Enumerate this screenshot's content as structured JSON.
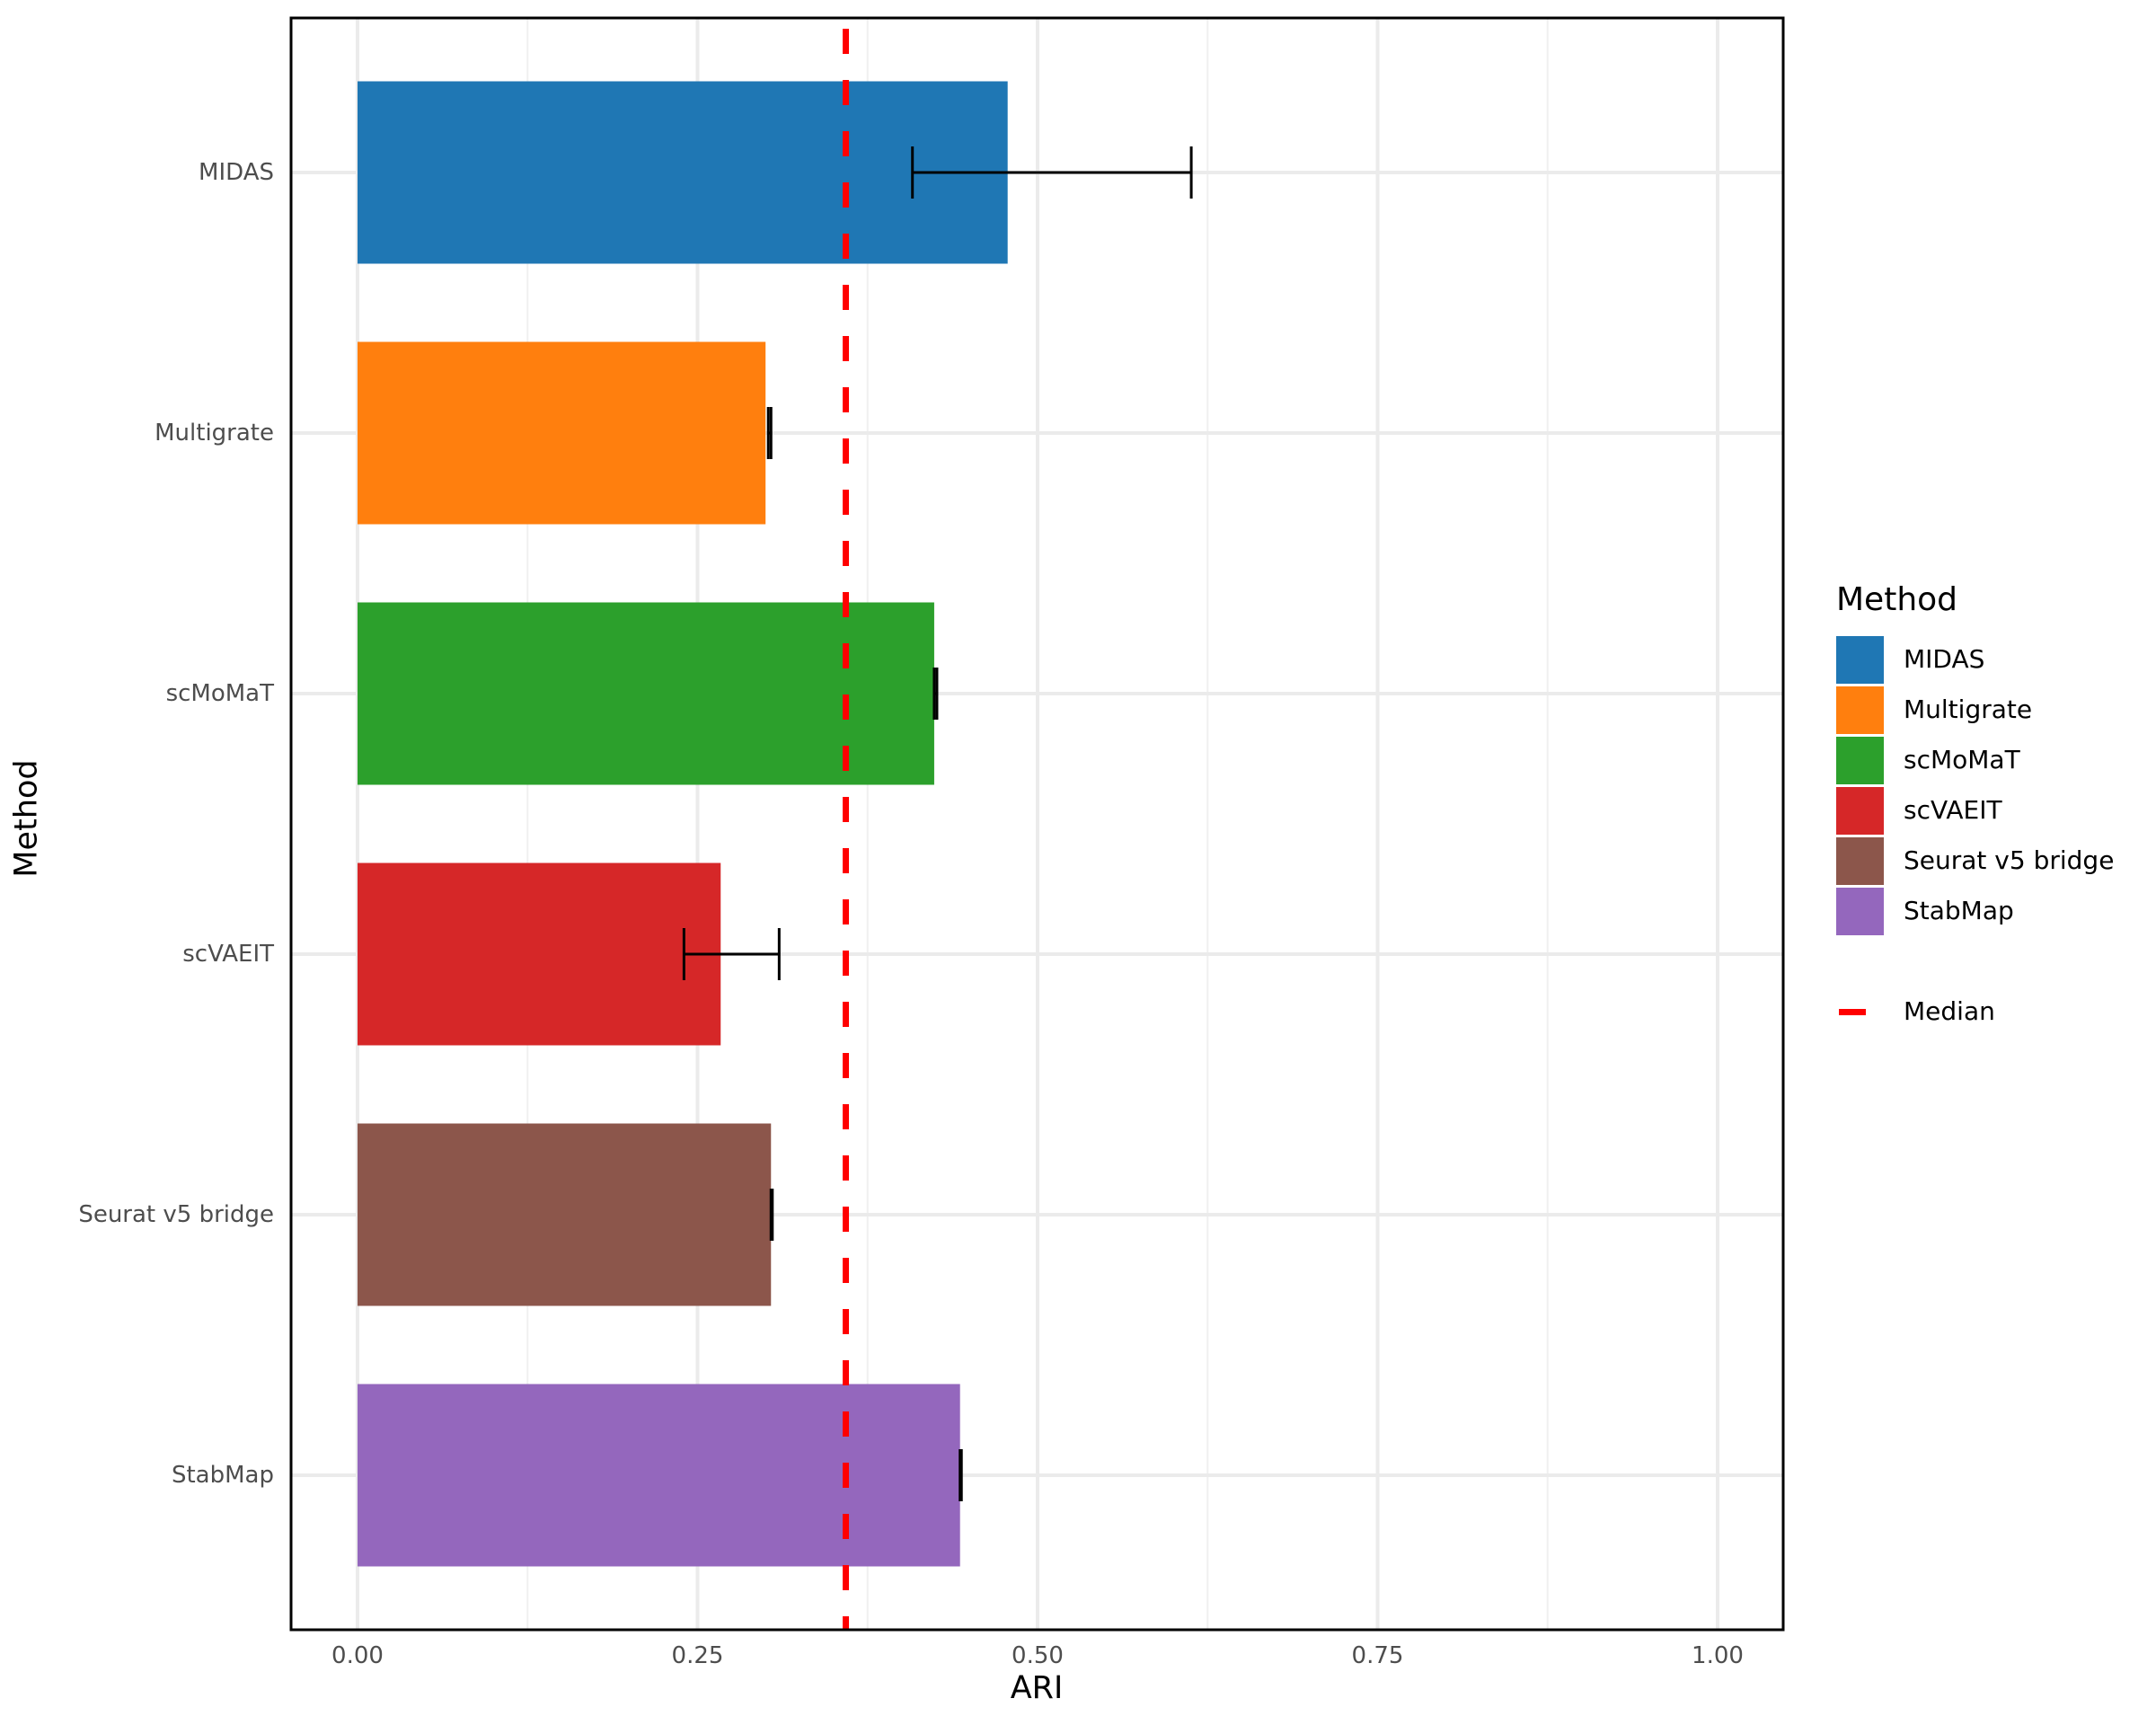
{
  "chart_data": {
    "type": "bar",
    "orientation": "horizontal",
    "title": "",
    "xlabel": "ARI",
    "ylabel": "Method",
    "xlim": [
      0,
      1.0
    ],
    "x_ticks": [
      "0.00",
      "0.25",
      "0.50",
      "0.75",
      "1.00"
    ],
    "x_tick_values": [
      0,
      0.25,
      0.5,
      0.75,
      1.0
    ],
    "grid": true,
    "categories": [
      "MIDAS",
      "Multigrate",
      "scMoMaT",
      "scVAEIT",
      "Seurat v5 bridge",
      "StabMap"
    ],
    "values": [
      0.478,
      0.3,
      0.424,
      0.267,
      0.304,
      0.443
    ],
    "error_low": [
      0.408,
      0.302,
      0.424,
      0.24,
      0.304,
      0.443
    ],
    "error_high": [
      0.613,
      0.304,
      0.426,
      0.31,
      0.305,
      0.444
    ],
    "colors": [
      "#1f77b4",
      "#ff7f0e",
      "#2ca02c",
      "#d62728",
      "#8c564b",
      "#9467bd"
    ],
    "reference_line": {
      "label": "Median",
      "value": 0.359,
      "color": "#ff0000",
      "style": "dashed"
    },
    "legend": {
      "title": "Method",
      "position": "right",
      "entries": [
        "MIDAS",
        "Multigrate",
        "scMoMaT",
        "scVAEIT",
        "Seurat v5 bridge",
        "StabMap"
      ],
      "median_label": "Median"
    }
  }
}
